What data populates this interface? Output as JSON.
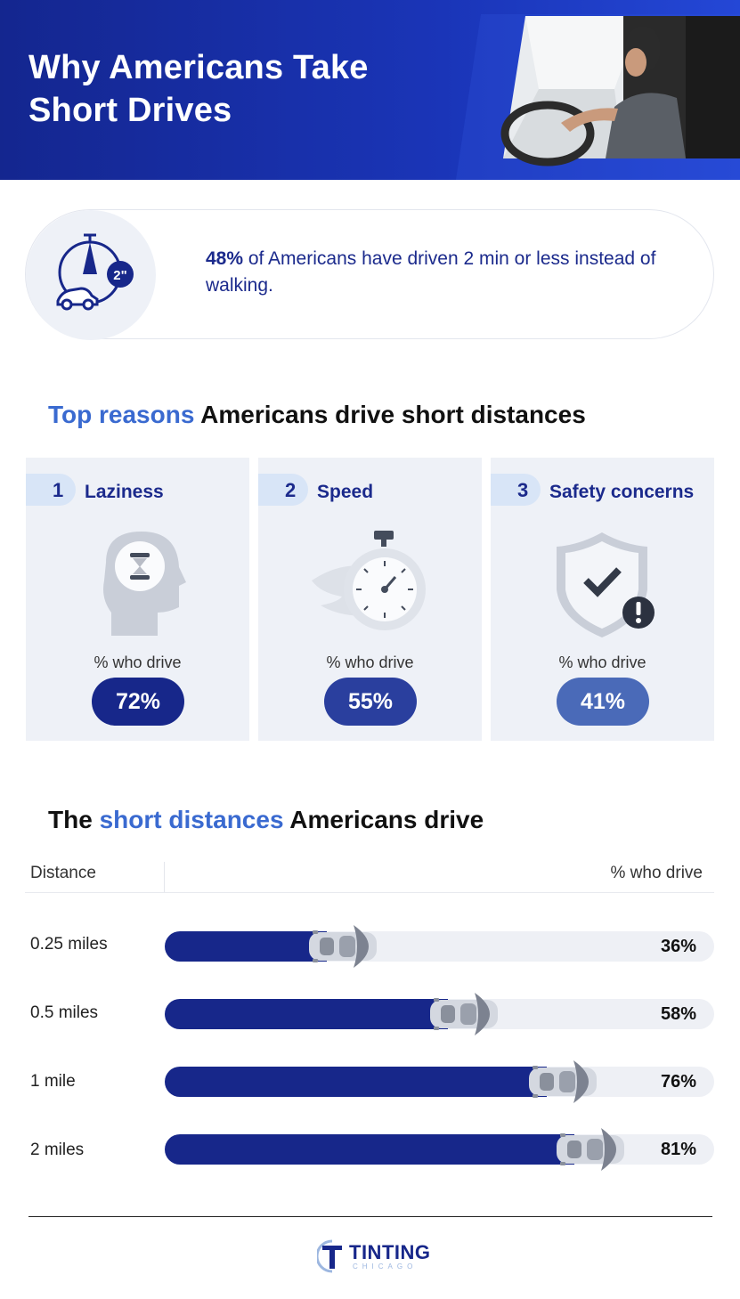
{
  "header": {
    "title": "Why Americans Take Short Drives"
  },
  "stat": {
    "highlight": "48%",
    "text": " of Americans have driven 2 min or less instead of walking.",
    "timer_label": "2\""
  },
  "reasons_section": {
    "highlight": "Top reasons",
    "rest": " Americans drive short distances"
  },
  "reasons": [
    {
      "rank": "1",
      "label": "Laziness",
      "sub": "% who drive",
      "value": "72%",
      "color": "#17278a",
      "icon": "head-hourglass-icon"
    },
    {
      "rank": "2",
      "label": "Speed",
      "sub": "% who drive",
      "value": "55%",
      "color": "#2a3f9e",
      "icon": "stopwatch-icon"
    },
    {
      "rank": "3",
      "label": "Safety concerns",
      "sub": "% who drive",
      "value": "41%",
      "color": "#4a6ab8",
      "icon": "shield-check-icon"
    }
  ],
  "distance_section": {
    "pre": "The ",
    "highlight": "short distances",
    "rest": " Americans drive"
  },
  "table": {
    "col_left": "Distance",
    "col_right": "% who drive"
  },
  "chart_data": {
    "type": "bar",
    "categories": [
      "0.25 miles",
      "0.5 miles",
      "1 mile",
      "2 miles"
    ],
    "values": [
      36,
      58,
      76,
      81
    ],
    "value_labels": [
      "36%",
      "58%",
      "76%",
      "81%"
    ],
    "ylim": [
      0,
      100
    ],
    "fill_color": "#17278a"
  },
  "footer": {
    "logo_main": "TINTING",
    "logo_sub": "CHICAGO"
  }
}
